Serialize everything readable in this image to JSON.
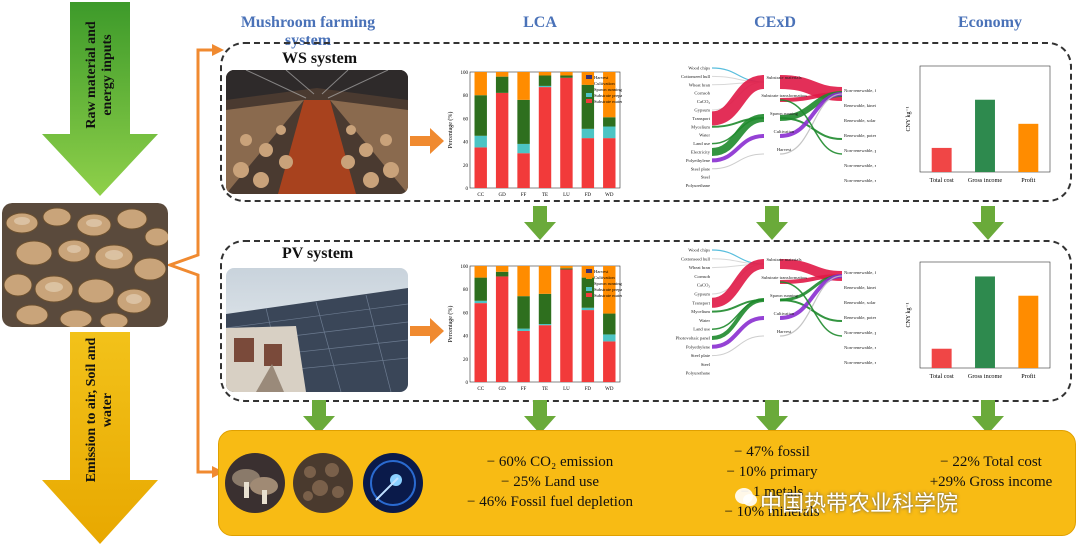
{
  "columns": {
    "farming": "Mushroom farming system",
    "lca": "LCA",
    "cexd": "CExD",
    "economy": "Economy"
  },
  "left": {
    "inputs": "Raw material and energy inputs",
    "emission": "Emission to air, Soil and  water"
  },
  "systems": {
    "ws": "WS system",
    "pv": "PV system"
  },
  "lca_labels": {
    "ylabel": "Percentage (%)",
    "ticks": [
      "0",
      "20",
      "40",
      "60",
      "80",
      "100"
    ],
    "categories": [
      "CC",
      "GD",
      "FF",
      "TE",
      "LU",
      "FD",
      "WD"
    ],
    "legend": [
      "Harvest",
      "Cultivation",
      "Spawn running",
      "Substrate preparation",
      "Substrate materials"
    ],
    "legend_pv": [
      "Harvest",
      "Cultivation",
      "Spawn running",
      "Substrate preparation",
      "Substrate materials"
    ]
  },
  "econ_labels": {
    "ylabel": "CNY kg⁻¹",
    "categories": [
      "Total cost",
      "Gross income",
      "Profit"
    ]
  },
  "cexd_labels": {
    "ws_left": [
      "Wood chips",
      "Cottonseed hull",
      "Wheat bran",
      "Cornsob",
      "CaCO₃",
      "Gypsum",
      "Transport",
      "Mycelium",
      "Water",
      "Land use",
      "Electricity",
      "Polyethylene",
      "Steel plate",
      "Steel",
      "Polyurethane"
    ],
    "ws_mid": [
      "Substrate materials",
      "Substrate transformation",
      "Spawn running",
      "Cultivation",
      "Harvest"
    ],
    "ws_right": [
      "Non-renewable, fossil",
      "Renewable, kinetic",
      "Renewable, solar",
      "Renewable, potential",
      "Non-renewable, primary",
      "Non-renewable, metals",
      "Non-renewable, minerals"
    ],
    "pv_left": [
      "Wood chips",
      "Cottonseed hull",
      "Wheat bran",
      "Cornsob",
      "CaCO₃",
      "Gypsum",
      "Transport",
      "Mycelium",
      "Water",
      "Land use",
      "Photovoltaic panel",
      "Polyethylene",
      "Steel plate",
      "Steel",
      "Polyurethane"
    ],
    "pv_mid": [
      "Substrate materials",
      "Substrate transformation",
      "Spawn running",
      "Cultivation",
      "Harvest"
    ],
    "pv_right": [
      "Non-renewable, fossil",
      "Renewable, kinetic",
      "Renewable, solar",
      "Renewable, potential",
      "Non-renewable, primary",
      "Non-renewable, metals",
      "Non-renewable, minerals"
    ]
  },
  "summary": {
    "lca": [
      "− 60% CO₂ emission",
      "− 25% Land use",
      "− 46% Fossil fuel depletion"
    ],
    "cexd": [
      "− 47% fossil",
      "− 10% primary",
      "− 1 metals",
      "− 10% minerals"
    ],
    "economy": [
      "− 22% Total cost",
      "+29% Gross income"
    ]
  },
  "watermark": "中国热带农业科学院",
  "colors": {
    "title_blue": "#4a72b8",
    "arrow_green": "#6aaa3a",
    "arrow_orange": "#f08a30",
    "harvest": "#3b3170",
    "cultivation": "#ff8c00",
    "spawn": "#2e6f1e",
    "substrate_prep": "#4cc4c4",
    "substrate_mat": "#f23a3a",
    "bottom_box": "#f8bb14"
  },
  "chart_data": [
    {
      "type": "bar",
      "stacked": true,
      "name_hint": "WS LCA",
      "categories": [
        "CC",
        "GD",
        "FF",
        "TE",
        "LU",
        "FD",
        "WD"
      ],
      "ylabel": "Percentage (%)",
      "ylim": [
        0,
        100
      ],
      "series": [
        {
          "name": "Substrate materials",
          "values": [
            35,
            82,
            30,
            87,
            95,
            43,
            43
          ]
        },
        {
          "name": "Substrate preparation",
          "values": [
            10,
            0,
            8,
            1,
            0,
            8,
            10
          ]
        },
        {
          "name": "Spawn running",
          "values": [
            35,
            14,
            38,
            9,
            2,
            38,
            8
          ]
        },
        {
          "name": "Cultivation",
          "values": [
            20,
            4,
            24,
            3,
            3,
            11,
            39
          ]
        },
        {
          "name": "Harvest",
          "values": [
            0,
            0,
            0,
            0,
            0,
            0,
            0
          ]
        }
      ]
    },
    {
      "type": "bar",
      "stacked": true,
      "name_hint": "PV LCA",
      "categories": [
        "CC",
        "GD",
        "FF",
        "TE",
        "LU",
        "FD",
        "WD"
      ],
      "ylabel": "Percentage (%)",
      "ylim": [
        0,
        100
      ],
      "series": [
        {
          "name": "Substrate materials",
          "values": [
            68,
            91,
            44,
            49,
            97,
            62,
            35
          ]
        },
        {
          "name": "Substrate preparation",
          "values": [
            2,
            0,
            2,
            1,
            0,
            2,
            6
          ]
        },
        {
          "name": "Spawn running",
          "values": [
            20,
            4,
            28,
            26,
            1,
            26,
            18
          ]
        },
        {
          "name": "Cultivation",
          "values": [
            10,
            5,
            26,
            24,
            2,
            10,
            41
          ]
        },
        {
          "name": "Harvest",
          "values": [
            0,
            0,
            0,
            0,
            0,
            0,
            0
          ]
        }
      ]
    },
    {
      "type": "bar",
      "name_hint": "WS Economy",
      "categories": [
        "Total cost",
        "Gross income",
        "Profit"
      ],
      "ylabel": "CNY kg⁻¹",
      "values": [
        5,
        15,
        10
      ],
      "ylim": [
        0,
        22
      ],
      "colors": [
        "#f04646",
        "#2e8a4e",
        "#ff8c00"
      ]
    },
    {
      "type": "bar",
      "name_hint": "PV Economy",
      "categories": [
        "Total cost",
        "Gross income",
        "Profit"
      ],
      "ylabel": "CNY kg⁻¹",
      "values": [
        4,
        19,
        15
      ],
      "ylim": [
        0,
        22
      ],
      "colors": [
        "#f04646",
        "#2e8a4e",
        "#ff8c00"
      ]
    }
  ]
}
